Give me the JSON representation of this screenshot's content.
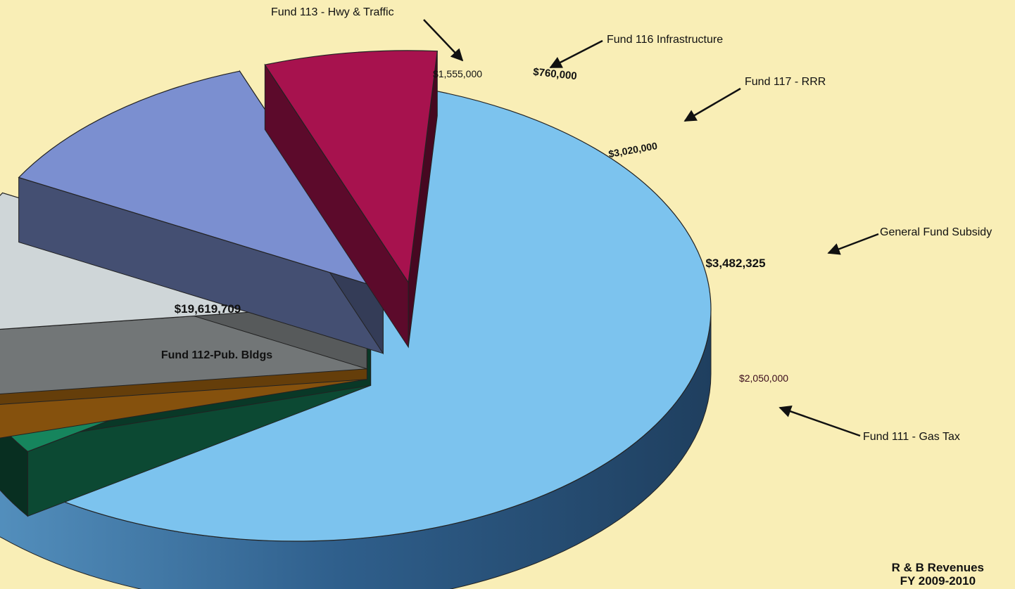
{
  "chart_data": {
    "type": "pie",
    "style": "3d-exploded",
    "title": "R & B Revenues",
    "subtitle": "FY 2009-2010",
    "slices": [
      {
        "name": "Fund 112-Pub. Bldgs",
        "value": 19619709,
        "label": "$19,619,709",
        "color": "#7cc3ee",
        "legend_position": "inside"
      },
      {
        "name": "Fund 113 - Hwy & Traffic",
        "value": 1555000,
        "label": "$1,555,000",
        "color": "#16855d",
        "legend_position": "top"
      },
      {
        "name": "Fund 116 Infrastructure",
        "value": 760000,
        "label": "$760,000",
        "color": "#f19418",
        "legend_position": "top"
      },
      {
        "name": "Fund 117 - RRR",
        "value": 3020000,
        "label": "$3,020,000",
        "color": "#cfd6d8",
        "legend_position": "top-right"
      },
      {
        "name": "General Fund Subsidy",
        "value": 3482325,
        "label": "$3,482,325",
        "color": "#7b8fd0",
        "legend_position": "right"
      },
      {
        "name": "Fund 111 - Gas Tax",
        "value": 2050000,
        "label": "$2,050,000",
        "color": "#a7124e",
        "legend_position": "bottom-right"
      }
    ]
  }
}
